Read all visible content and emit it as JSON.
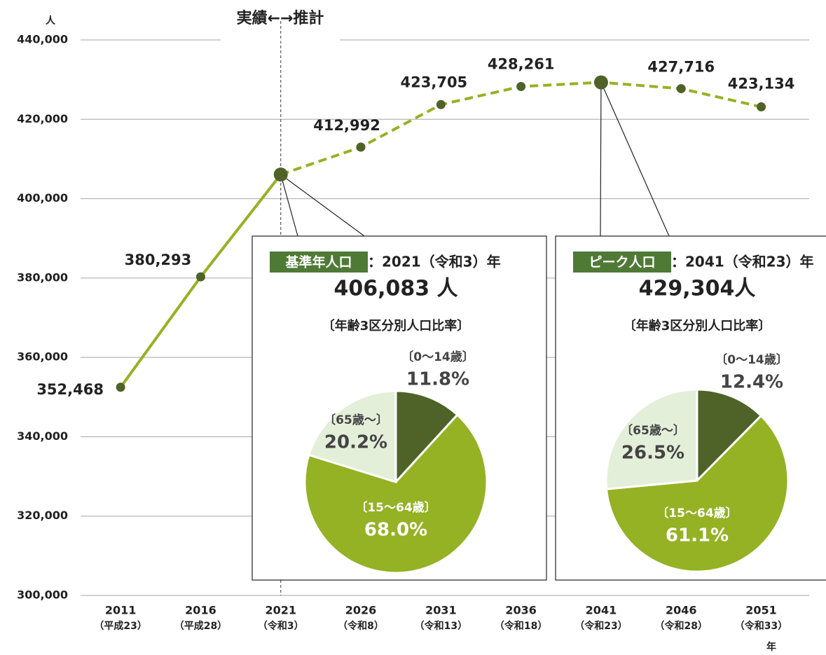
{
  "chart_data": [
    {
      "type": "line",
      "y_unit": "人",
      "x_unit": "年",
      "annotation": "実績←→推計",
      "categories": [
        "2011",
        "2016",
        "2021",
        "2026",
        "2031",
        "2036",
        "2041",
        "2046",
        "2051"
      ],
      "era_labels": [
        "（平成23）",
        "（平成28）",
        "（令和3）",
        "（令和8）",
        "（令和13）",
        "（令和18）",
        "（令和23）",
        "（令和28）",
        "（令和33）"
      ],
      "values": [
        352468,
        380293,
        406083,
        412992,
        423705,
        428261,
        429304,
        427716,
        423134
      ],
      "value_labels": [
        "352,468",
        "380,293",
        null,
        "412,992",
        "423,705",
        "428,261",
        null,
        "427,716",
        "423,134"
      ],
      "color": "#94b224",
      "marker_color": "#4f6228",
      "ylim": [
        300000,
        440000
      ],
      "yticks": [
        {
          "value": 300000,
          "label": "300,000"
        },
        {
          "value": 320000,
          "label": "320,000"
        },
        {
          "value": 340000,
          "label": "340,000"
        },
        {
          "value": 360000,
          "label": "360,000"
        },
        {
          "value": 380000,
          "label": "380,000"
        },
        {
          "value": 400000,
          "label": "400,000"
        },
        {
          "value": 420000,
          "label": "420,000"
        },
        {
          "value": 440000,
          "label": "440,000"
        }
      ],
      "grid": true
    },
    {
      "type": "pie",
      "badge": "基準年人口",
      "title": "：2021（令和3）年",
      "total": "406,083 人",
      "subtitle": "〔年齢3区分別人口比率〕",
      "categories": [
        "〔0～14歳〕",
        "〔15～64歳〕",
        "〔65歳～〕"
      ],
      "values": [
        11.8,
        68.0,
        20.2
      ],
      "value_labels": [
        "11.8%",
        "68.0%",
        "20.2%"
      ],
      "colors": [
        "#4f6228",
        "#94b224",
        "#e3efd9"
      ]
    },
    {
      "type": "pie",
      "badge": "ピーク人口",
      "title": "：2041（令和23）年",
      "total": "429,304人",
      "subtitle": "〔年齢3区分別人口比率〕",
      "categories": [
        "〔0～14歳〕",
        "〔15～64歳〕",
        "〔65歳～〕"
      ],
      "values": [
        12.4,
        61.1,
        26.5
      ],
      "value_labels": [
        "12.4%",
        "61.1%",
        "26.5%"
      ],
      "colors": [
        "#4f6228",
        "#94b224",
        "#e3efd9"
      ]
    }
  ]
}
